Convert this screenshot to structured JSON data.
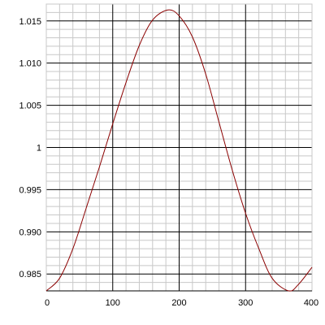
{
  "chart_data": {
    "type": "line",
    "title": "",
    "xlabel": "",
    "ylabel": "",
    "xlim": [
      0,
      400
    ],
    "ylim": [
      0.983,
      1.017
    ],
    "x_ticks": [
      0,
      100,
      200,
      300,
      400
    ],
    "x_tick_labels": [
      "0",
      "100",
      "200",
      "300",
      "400"
    ],
    "y_ticks": [
      0.985,
      0.99,
      0.995,
      1.0,
      1.005,
      1.01,
      1.015
    ],
    "y_tick_labels": [
      "0.985",
      "0.990",
      "0.995",
      "1",
      "1.005",
      "1.010",
      "1.015"
    ],
    "grid": true,
    "legend": "none",
    "colors": {
      "line": "#8b0000",
      "major_grid": "#000000",
      "minor_grid": "#c8c8c8"
    },
    "series": [
      {
        "x": [
          0,
          20,
          40,
          60,
          80,
          100,
          120,
          140,
          160,
          183,
          200,
          220,
          240,
          260,
          280,
          300,
          320,
          340,
          365,
          380,
          400
        ],
        "y": [
          0.983,
          0.9845,
          0.988,
          0.9928,
          0.9977,
          1.0028,
          1.0077,
          1.0121,
          1.0151,
          1.0163,
          1.0156,
          1.0131,
          1.0087,
          1.003,
          0.9973,
          0.9922,
          0.988,
          0.9845,
          0.983,
          0.9838,
          0.9858
        ]
      }
    ]
  }
}
